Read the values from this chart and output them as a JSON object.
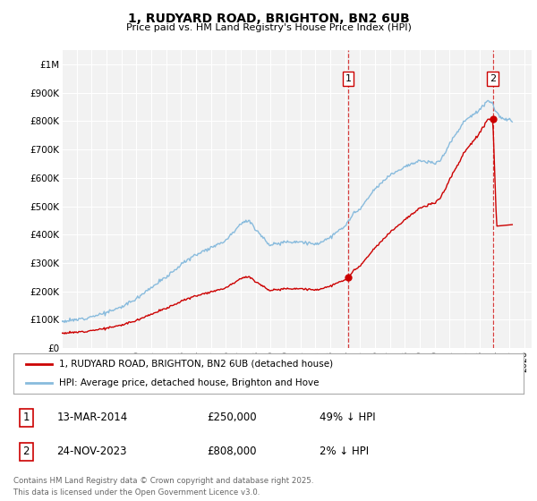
{
  "title": "1, RUDYARD ROAD, BRIGHTON, BN2 6UB",
  "subtitle": "Price paid vs. HM Land Registry's House Price Index (HPI)",
  "legend_label_red": "1, RUDYARD ROAD, BRIGHTON, BN2 6UB (detached house)",
  "legend_label_blue": "HPI: Average price, detached house, Brighton and Hove",
  "ylim": [
    0,
    1050000
  ],
  "xlim_start": 1995.0,
  "xlim_end": 2026.5,
  "transaction1_date": 2014.19,
  "transaction1_price": 250000,
  "transaction2_date": 2023.9,
  "transaction2_price": 808000,
  "red_color": "#cc0000",
  "blue_color": "#88bbdd",
  "background_color": "#f2f2f2",
  "footer_text": "Contains HM Land Registry data © Crown copyright and database right 2025.\nThis data is licensed under the Open Government Licence v3.0.",
  "table_rows": [
    {
      "num": "1",
      "date": "13-MAR-2014",
      "price": "£250,000",
      "hpi": "49% ↓ HPI"
    },
    {
      "num": "2",
      "date": "24-NOV-2023",
      "price": "£808,000",
      "hpi": "2% ↓ HPI"
    }
  ],
  "ytick_labels": [
    "£0",
    "£100K",
    "£200K",
    "£300K",
    "£400K",
    "£500K",
    "£600K",
    "£700K",
    "£800K",
    "£900K",
    "£1M"
  ],
  "ytick_values": [
    0,
    100000,
    200000,
    300000,
    400000,
    500000,
    600000,
    700000,
    800000,
    900000,
    1000000
  ]
}
